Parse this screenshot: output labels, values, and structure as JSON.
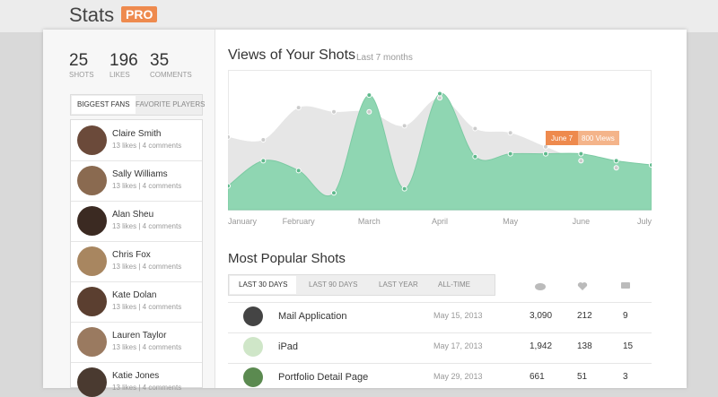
{
  "header": {
    "title": "Stats",
    "badge": "PRO"
  },
  "summary": [
    {
      "value": "25",
      "label": "SHOTS"
    },
    {
      "value": "196",
      "label": "LIKES"
    },
    {
      "value": "35",
      "label": "COMMENTS"
    }
  ],
  "fan_tabs": [
    "BIGGEST FANS",
    "FAVORITE PLAYERS"
  ],
  "fans": [
    {
      "name": "Claire Smith",
      "meta": "13 likes | 4 comments"
    },
    {
      "name": "Sally Williams",
      "meta": "13 likes | 4 comments"
    },
    {
      "name": "Alan Sheu",
      "meta": "13 likes | 4 comments"
    },
    {
      "name": "Chris Fox",
      "meta": "13 likes | 4 comments"
    },
    {
      "name": "Kate Dolan",
      "meta": "13 likes | 4 comments"
    },
    {
      "name": "Lauren Taylor",
      "meta": "13 likes | 4 comments"
    },
    {
      "name": "Katie Jones",
      "meta": "13 likes | 4 comments"
    }
  ],
  "chart_data": {
    "type": "area",
    "title": "Views of Your Shots",
    "subtitle": "Last 7 months",
    "categories": [
      "January",
      null,
      "February",
      null,
      "March",
      null,
      "April",
      null,
      "May",
      null,
      "June",
      null,
      "July"
    ],
    "ylim": [
      0,
      100
    ],
    "series": [
      {
        "color": "#e6e6e6",
        "values": [
          52,
          50,
          73,
          70,
          70,
          60,
          80,
          58,
          55,
          45,
          35,
          30,
          32
        ]
      },
      {
        "color": "#8fd6b2",
        "values": [
          17,
          35,
          28,
          12,
          82,
          15,
          83,
          38,
          40,
          40,
          40,
          35,
          32
        ]
      }
    ],
    "annotation": {
      "date": "June 7",
      "text": "800 Views"
    }
  },
  "popular": {
    "title": "Most Popular Shots",
    "tabs": [
      "LAST 30 DAYS",
      "LAST 90 DAYS",
      "LAST YEAR",
      "ALL-TIME"
    ],
    "rows": [
      [
        "Mail Application",
        "May 15, 2013",
        "3,090",
        "212",
        "9"
      ],
      [
        "iPad",
        "May 17, 2013",
        "1,942",
        "138",
        "15"
      ],
      [
        "Portfolio Detail Page",
        "May 29, 2013",
        "661",
        "51",
        "3"
      ]
    ]
  }
}
